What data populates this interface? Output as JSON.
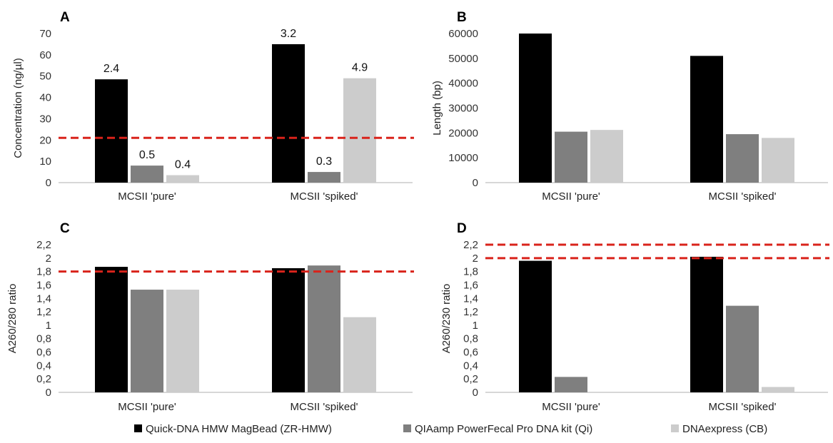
{
  "colors": {
    "zr_hmw": "#000000",
    "qi": "#7f7f7f",
    "cb": "#cccccc",
    "threshold": "#d9231b",
    "axis": "#bfbfbf"
  },
  "legend": [
    {
      "name": "Quick-DNA HMW MagBead (ZR-HMW)",
      "color": "#000000"
    },
    {
      "name": "QIAamp PowerFecal Pro DNA kit (Qi)",
      "color": "#7f7f7f"
    },
    {
      "name": "DNAexpress (CB)",
      "color": "#cccccc"
    }
  ],
  "chart_data": [
    {
      "panel": "A",
      "type": "bar",
      "categories": [
        "MCSII 'pure'",
        "MCSII 'spiked'"
      ],
      "series": [
        {
          "name": "Quick-DNA HMW MagBead (ZR-HMW)",
          "values": [
            48.5,
            65
          ],
          "labels": [
            "2.4",
            "3.2"
          ]
        },
        {
          "name": "QIAamp PowerFecal Pro DNA kit (Qi)",
          "values": [
            8,
            5
          ],
          "labels": [
            "0.5",
            "0.3"
          ]
        },
        {
          "name": "DNAexpress (CB)",
          "values": [
            3.5,
            49
          ],
          "labels": [
            "0.4",
            "4.9"
          ]
        }
      ],
      "ylabel": "Concentration  (ng/µl)",
      "ylim": [
        0,
        70
      ],
      "yticks": [
        "0",
        "10",
        "20",
        "30",
        "40",
        "50",
        "60",
        "70"
      ],
      "ytick_values": [
        0,
        10,
        20,
        30,
        40,
        50,
        60,
        70
      ],
      "thresholds": [
        21
      ],
      "grid": false
    },
    {
      "panel": "B",
      "type": "bar",
      "categories": [
        "MCSII 'pure'",
        "MCSII 'spiked'"
      ],
      "series": [
        {
          "name": "Quick-DNA HMW MagBead (ZR-HMW)",
          "values": [
            60000,
            51000
          ]
        },
        {
          "name": "QIAamp PowerFecal Pro DNA kit (Qi)",
          "values": [
            20500,
            19500
          ]
        },
        {
          "name": "DNAexpress (CB)",
          "values": [
            21200,
            18000
          ]
        }
      ],
      "ylabel": "Length (bp)",
      "ylim": [
        0,
        60000
      ],
      "yticks": [
        "0",
        "10000",
        "20000",
        "30000",
        "40000",
        "50000",
        "60000"
      ],
      "ytick_values": [
        0,
        10000,
        20000,
        30000,
        40000,
        50000,
        60000
      ],
      "thresholds": [],
      "grid": false
    },
    {
      "panel": "C",
      "type": "bar",
      "categories": [
        "MCSII 'pure'",
        "MCSII 'spiked'"
      ],
      "series": [
        {
          "name": "Quick-DNA HMW MagBead (ZR-HMW)",
          "values": [
            1.87,
            1.85
          ]
        },
        {
          "name": "QIAamp PowerFecal Pro DNA kit (Qi)",
          "values": [
            1.53,
            1.89
          ]
        },
        {
          "name": "DNAexpress (CB)",
          "values": [
            1.53,
            1.12
          ]
        }
      ],
      "ylabel": "A260/280 ratio",
      "ylim": [
        0,
        2.2
      ],
      "yticks": [
        "0",
        "0,2",
        "0,4",
        "0,6",
        "0,8",
        "1",
        "1,2",
        "1,4",
        "1,6",
        "1,8",
        "2",
        "2,2"
      ],
      "ytick_values": [
        0,
        0.2,
        0.4,
        0.6,
        0.8,
        1,
        1.2,
        1.4,
        1.6,
        1.8,
        2,
        2.2
      ],
      "thresholds": [
        1.8
      ],
      "grid": false
    },
    {
      "panel": "D",
      "type": "bar",
      "categories": [
        "MCSII 'pure'",
        "MCSII 'spiked'"
      ],
      "series": [
        {
          "name": "Quick-DNA HMW MagBead (ZR-HMW)",
          "values": [
            1.96,
            2.02
          ]
        },
        {
          "name": "QIAamp PowerFecal Pro DNA kit (Qi)",
          "values": [
            0.23,
            1.29
          ]
        },
        {
          "name": "DNAexpress (CB)",
          "values": [
            0,
            0.08
          ]
        }
      ],
      "ylabel": "A260/230 ratio",
      "ylim": [
        0,
        2.2
      ],
      "yticks": [
        "0",
        "0,2",
        "0,4",
        "0,6",
        "0,8",
        "1",
        "1,2",
        "1,4",
        "1,6",
        "1,8",
        "2",
        "2,2"
      ],
      "ytick_values": [
        0,
        0.2,
        0.4,
        0.6,
        0.8,
        1,
        1.2,
        1.4,
        1.6,
        1.8,
        2,
        2.2
      ],
      "thresholds": [
        2.0,
        2.2
      ],
      "grid": false
    }
  ]
}
